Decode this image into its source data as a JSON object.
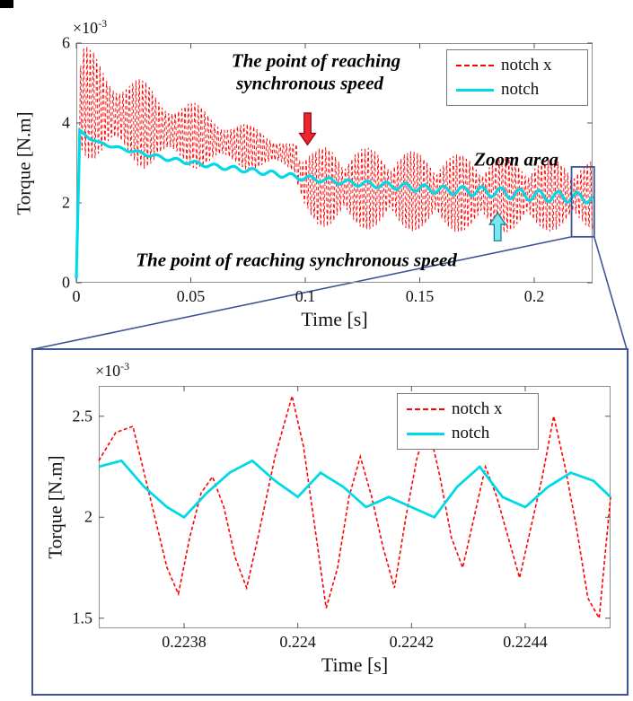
{
  "figure": {
    "background": "#ffffff",
    "accent_blue": "#3f5497",
    "frame_color": "#8f8f8f",
    "text_color": "#111111"
  },
  "chart_data": [
    {
      "id": "main",
      "type": "line",
      "title": "",
      "xlabel": "Time [s]",
      "ylabel": "Torque [N.m]",
      "y_multiplier_base": "×10",
      "y_multiplier_exp": "-3",
      "xlim": [
        0,
        0.2255
      ],
      "ylim": [
        0,
        6
      ],
      "xticks": [
        0,
        0.05,
        0.1,
        0.15,
        0.2
      ],
      "xtick_labels": [
        "0",
        "0.05",
        "0.1",
        "0.15",
        "0.2"
      ],
      "yticks": [
        0,
        2,
        4,
        6
      ],
      "ytick_labels": [
        "0",
        "2",
        "4",
        "6"
      ],
      "grid": false,
      "legend_position": "top-right",
      "legend": [
        {
          "label": "notch x",
          "color": "#ff0000",
          "style": "dashed"
        },
        {
          "label": "notch",
          "color": "#00d9e6",
          "style": "solid"
        }
      ],
      "series": [
        {
          "name": "notch x",
          "color": "#ff0000",
          "style": "dashed",
          "width": 0.9,
          "synth": {
            "samples": 1650,
            "f_carrier": 700,
            "split_t": 0.097,
            "mod_pre": {
              "base": 0.72,
              "amp": 0.28,
              "freq": 43
            },
            "mod_post": {
              "base": 0.42,
              "amp": 0.58,
              "freq": 25
            },
            "center": [
              [
                0,
                0.5
              ],
              [
                0.002,
                4.6
              ],
              [
                0.01,
                4.35
              ],
              [
                0.03,
                3.95
              ],
              [
                0.05,
                3.7
              ],
              [
                0.07,
                3.45
              ],
              [
                0.09,
                3.25
              ],
              [
                0.096,
                3.1
              ],
              [
                0.0985,
                2.55
              ],
              [
                0.105,
                2.4
              ],
              [
                0.13,
                2.35
              ],
              [
                0.16,
                2.25
              ],
              [
                0.19,
                2.2
              ],
              [
                0.2255,
                2.2
              ]
            ],
            "amplitude": [
              [
                0,
                0.2
              ],
              [
                0.002,
                1.45
              ],
              [
                0.01,
                1.35
              ],
              [
                0.03,
                1.1
              ],
              [
                0.05,
                0.85
              ],
              [
                0.07,
                0.62
              ],
              [
                0.09,
                0.46
              ],
              [
                0.096,
                0.4
              ],
              [
                0.0985,
                0.8
              ],
              [
                0.11,
                1.05
              ],
              [
                0.15,
                1.0
              ],
              [
                0.19,
                0.95
              ],
              [
                0.2255,
                0.88
              ]
            ]
          }
        },
        {
          "name": "notch",
          "color": "#00d9e6",
          "style": "solid",
          "width": 3.2,
          "synth": {
            "samples": 900,
            "f_carrier": 120,
            "center": [
              [
                0,
                0.1
              ],
              [
                0.0015,
                3.8
              ],
              [
                0.005,
                3.65
              ],
              [
                0.01,
                3.5
              ],
              [
                0.02,
                3.35
              ],
              [
                0.04,
                3.1
              ],
              [
                0.06,
                2.92
              ],
              [
                0.08,
                2.78
              ],
              [
                0.1,
                2.62
              ],
              [
                0.12,
                2.5
              ],
              [
                0.14,
                2.42
              ],
              [
                0.16,
                2.32
              ],
              [
                0.18,
                2.28
              ],
              [
                0.2,
                2.18
              ],
              [
                0.2255,
                2.12
              ]
            ],
            "amplitude": [
              [
                0,
                0.02
              ],
              [
                0.05,
                0.05
              ],
              [
                0.12,
                0.07
              ],
              [
                0.16,
                0.1
              ],
              [
                0.19,
                0.13
              ],
              [
                0.2255,
                0.13
              ]
            ]
          }
        }
      ],
      "annotations": [
        {
          "type": "text",
          "name": "sync-speed-top-line1",
          "text": "The point of reaching",
          "x": 0.1047,
          "y": 5.55
        },
        {
          "type": "text",
          "name": "sync-speed-top-line2",
          "text": "synchronous speed",
          "x": 0.102,
          "y": 5.0
        },
        {
          "type": "text",
          "name": "sync-speed-bottom",
          "text": "The point of reaching synchronous speed",
          "x": 0.0961,
          "y": 0.56
        },
        {
          "type": "text",
          "name": "zoom-area-label",
          "text": "Zoom area",
          "x": 0.1922,
          "y": 3.08
        },
        {
          "type": "arrow",
          "name": "sync-arrow-red",
          "x": 0.101,
          "y_tail": 4.25,
          "y_head": 3.45,
          "fill": "#e8272e",
          "stroke": "#99000d"
        },
        {
          "type": "arrow",
          "name": "sync-arrow-cyan",
          "x": 0.184,
          "y_tail": 1.05,
          "y_head": 1.75,
          "fill": "#7ae6ef",
          "stroke": "#0c7a8a"
        },
        {
          "type": "zoom-rect",
          "name": "zoom-rect",
          "x0": 0.2163,
          "x1": 0.2262,
          "y0": 1.15,
          "y1": 2.9
        }
      ]
    },
    {
      "id": "zoom",
      "type": "line",
      "title": "",
      "xlabel": "Time [s]",
      "ylabel": "Torque [N.m]",
      "y_multiplier_base": "×10",
      "y_multiplier_exp": "-3",
      "xlim": [
        0.22365,
        0.22455
      ],
      "ylim": [
        1.45,
        2.65
      ],
      "xticks": [
        0.2238,
        0.224,
        0.2242,
        0.2244
      ],
      "xtick_labels": [
        "0.2238",
        "0.224",
        "0.2242",
        "0.2244"
      ],
      "yticks": [
        1.5,
        2,
        2.5
      ],
      "ytick_labels": [
        "1.5",
        "2",
        "2.5"
      ],
      "grid": false,
      "legend_position": "top-right",
      "legend": [
        {
          "label": "notch x",
          "color": "#ff0000",
          "style": "dashed"
        },
        {
          "label": "notch",
          "color": "#00d9e6",
          "style": "solid"
        }
      ],
      "series": [
        {
          "name": "notch x",
          "color": "#ff0000",
          "style": "dashed",
          "width": 1.6,
          "points": [
            [
              0.22365,
              2.28
            ],
            [
              0.22368,
              2.42
            ],
            [
              0.22371,
              2.45
            ],
            [
              0.22374,
              2.1
            ],
            [
              0.22377,
              1.75
            ],
            [
              0.22379,
              1.62
            ],
            [
              0.22381,
              1.9
            ],
            [
              0.22383,
              2.12
            ],
            [
              0.22385,
              2.2
            ],
            [
              0.22387,
              2.05
            ],
            [
              0.22389,
              1.8
            ],
            [
              0.22391,
              1.65
            ],
            [
              0.22393,
              1.9
            ],
            [
              0.22396,
              2.3
            ],
            [
              0.22399,
              2.6
            ],
            [
              0.22401,
              2.35
            ],
            [
              0.22403,
              1.95
            ],
            [
              0.22405,
              1.55
            ],
            [
              0.22407,
              1.75
            ],
            [
              0.22409,
              2.1
            ],
            [
              0.22411,
              2.3
            ],
            [
              0.22413,
              2.1
            ],
            [
              0.22415,
              1.85
            ],
            [
              0.22417,
              1.65
            ],
            [
              0.22419,
              2.0
            ],
            [
              0.22421,
              2.3
            ],
            [
              0.22423,
              2.45
            ],
            [
              0.22425,
              2.2
            ],
            [
              0.22427,
              1.9
            ],
            [
              0.22429,
              1.75
            ],
            [
              0.22431,
              2.0
            ],
            [
              0.22433,
              2.25
            ],
            [
              0.22435,
              2.1
            ],
            [
              0.22437,
              1.9
            ],
            [
              0.22439,
              1.7
            ],
            [
              0.22441,
              1.95
            ],
            [
              0.22443,
              2.2
            ],
            [
              0.22445,
              2.5
            ],
            [
              0.22447,
              2.25
            ],
            [
              0.22449,
              1.95
            ],
            [
              0.22451,
              1.6
            ],
            [
              0.22453,
              1.5
            ],
            [
              0.22455,
              2.1
            ]
          ]
        },
        {
          "name": "notch",
          "color": "#00d9e6",
          "style": "solid",
          "width": 2.8,
          "points": [
            [
              0.22365,
              2.25
            ],
            [
              0.22369,
              2.28
            ],
            [
              0.22373,
              2.15
            ],
            [
              0.22377,
              2.05
            ],
            [
              0.2238,
              2.0
            ],
            [
              0.22384,
              2.12
            ],
            [
              0.22388,
              2.22
            ],
            [
              0.22392,
              2.28
            ],
            [
              0.22396,
              2.18
            ],
            [
              0.224,
              2.1
            ],
            [
              0.22404,
              2.22
            ],
            [
              0.22408,
              2.15
            ],
            [
              0.22412,
              2.05
            ],
            [
              0.22416,
              2.1
            ],
            [
              0.2242,
              2.05
            ],
            [
              0.22424,
              2.0
            ],
            [
              0.22428,
              2.15
            ],
            [
              0.22432,
              2.25
            ],
            [
              0.22436,
              2.1
            ],
            [
              0.2244,
              2.05
            ],
            [
              0.22444,
              2.15
            ],
            [
              0.22448,
              2.22
            ],
            [
              0.22452,
              2.18
            ],
            [
              0.22455,
              2.1
            ]
          ]
        }
      ],
      "annotations": []
    }
  ]
}
